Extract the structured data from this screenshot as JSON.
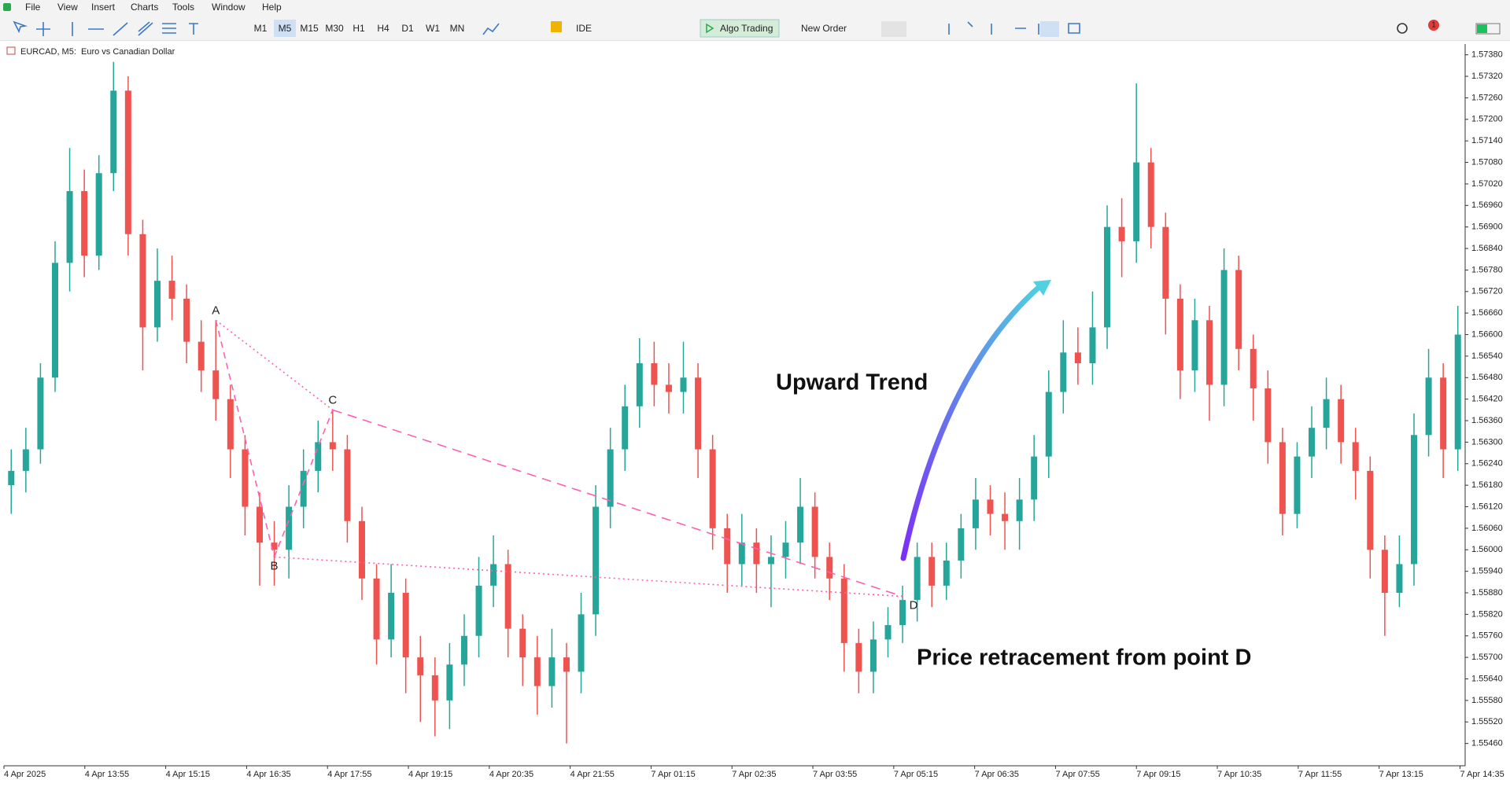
{
  "menu": [
    "File",
    "View",
    "Insert",
    "Charts",
    "Tools",
    "Window",
    "Help"
  ],
  "toolbar": {
    "timeframes": [
      "M1",
      "M5",
      "M15",
      "M30",
      "H1",
      "H4",
      "D1",
      "W1",
      "MN"
    ],
    "active_timeframe": "M5",
    "ide": "IDE",
    "algo_trading": "Algo Trading",
    "new_order": "New Order",
    "notifications": 1
  },
  "chart_data": {
    "type": "candlestick",
    "title": "EURCAD, M5:  Euro vs Canadian Dollar",
    "up_color": "#26a69a",
    "down_color": "#ef5350",
    "x_labels": [
      "4 Apr 2025",
      "4 Apr 13:55",
      "4 Apr 15:15",
      "4 Apr 16:35",
      "4 Apr 17:55",
      "4 Apr 19:15",
      "4 Apr 20:35",
      "4 Apr 21:55",
      "7 Apr 01:15",
      "7 Apr 02:35",
      "7 Apr 03:55",
      "7 Apr 05:15",
      "7 Apr 06:35",
      "7 Apr 07:55",
      "7 Apr 09:15",
      "7 Apr 10:35",
      "7 Apr 11:55",
      "7 Apr 13:15",
      "7 Apr 14:35"
    ],
    "ylim": [
      1.554,
      1.5741
    ],
    "yticks": [
      {
        "value": 1.5738,
        "label": "1.57380"
      },
      {
        "value": 1.5732,
        "label": "1.57320"
      },
      {
        "value": 1.5726,
        "label": "1.57260"
      },
      {
        "value": 1.572,
        "label": "1.57200"
      },
      {
        "value": 1.5714,
        "label": "1.57140"
      },
      {
        "value": 1.5708,
        "label": "1.57080"
      },
      {
        "value": 1.5702,
        "label": "1.57020"
      },
      {
        "value": 1.5696,
        "label": "1.56960"
      },
      {
        "value": 1.569,
        "label": "1.56900"
      },
      {
        "value": 1.5684,
        "label": "1.56840"
      },
      {
        "value": 1.5678,
        "label": "1.56780"
      },
      {
        "value": 1.5672,
        "label": "1.56720"
      },
      {
        "value": 1.5666,
        "label": "1.56660"
      },
      {
        "value": 1.566,
        "label": "1.56600"
      },
      {
        "value": 1.5654,
        "label": "1.56540"
      },
      {
        "value": 1.5648,
        "label": "1.56480"
      },
      {
        "value": 1.5642,
        "label": "1.56420"
      },
      {
        "value": 1.5636,
        "label": "1.56360"
      },
      {
        "value": 1.563,
        "label": "1.56300"
      },
      {
        "value": 1.5624,
        "label": "1.56240"
      },
      {
        "value": 1.5618,
        "label": "1.56180"
      },
      {
        "value": 1.5612,
        "label": "1.56120"
      },
      {
        "value": 1.5606,
        "label": "1.56060"
      },
      {
        "value": 1.56,
        "label": "1.56000"
      },
      {
        "value": 1.5594,
        "label": "1.55940"
      },
      {
        "value": 1.5588,
        "label": "1.55880"
      },
      {
        "value": 1.5582,
        "label": "1.55820"
      },
      {
        "value": 1.5576,
        "label": "1.55760"
      },
      {
        "value": 1.557,
        "label": "1.55700"
      },
      {
        "value": 1.5564,
        "label": "1.55640"
      },
      {
        "value": 1.5558,
        "label": "1.55580"
      },
      {
        "value": 1.5552,
        "label": "1.55520"
      },
      {
        "value": 1.5546,
        "label": "1.55460"
      }
    ],
    "candles": [
      [
        1.5618,
        1.5628,
        1.561,
        1.5622
      ],
      [
        1.5622,
        1.5634,
        1.5616,
        1.5628
      ],
      [
        1.5628,
        1.5652,
        1.5624,
        1.5648
      ],
      [
        1.5648,
        1.5686,
        1.5644,
        1.568
      ],
      [
        1.568,
        1.5712,
        1.5672,
        1.57
      ],
      [
        1.57,
        1.5706,
        1.5676,
        1.5682
      ],
      [
        1.5682,
        1.571,
        1.5678,
        1.5705
      ],
      [
        1.5705,
        1.5736,
        1.57,
        1.5728
      ],
      [
        1.5728,
        1.5732,
        1.5682,
        1.5688
      ],
      [
        1.5688,
        1.5692,
        1.565,
        1.5662
      ],
      [
        1.5662,
        1.5684,
        1.5658,
        1.5675
      ],
      [
        1.5675,
        1.5682,
        1.5664,
        1.567
      ],
      [
        1.567,
        1.5674,
        1.5652,
        1.5658
      ],
      [
        1.5658,
        1.5664,
        1.5644,
        1.565
      ],
      [
        1.565,
        1.5664,
        1.5636,
        1.5642
      ],
      [
        1.5642,
        1.5646,
        1.562,
        1.5628
      ],
      [
        1.5628,
        1.5632,
        1.5604,
        1.5612
      ],
      [
        1.5612,
        1.5616,
        1.559,
        1.5602
      ],
      [
        1.5602,
        1.5608,
        1.559,
        1.56
      ],
      [
        1.56,
        1.5618,
        1.5592,
        1.5612
      ],
      [
        1.5612,
        1.5628,
        1.5606,
        1.5622
      ],
      [
        1.5622,
        1.5636,
        1.5616,
        1.563
      ],
      [
        1.563,
        1.5639,
        1.5622,
        1.5628
      ],
      [
        1.5628,
        1.5632,
        1.5602,
        1.5608
      ],
      [
        1.5608,
        1.5612,
        1.5586,
        1.5592
      ],
      [
        1.5592,
        1.5596,
        1.5568,
        1.5575
      ],
      [
        1.5575,
        1.5596,
        1.557,
        1.5588
      ],
      [
        1.5588,
        1.5592,
        1.556,
        1.557
      ],
      [
        1.557,
        1.5576,
        1.5552,
        1.5565
      ],
      [
        1.5565,
        1.557,
        1.5548,
        1.5558
      ],
      [
        1.5558,
        1.5574,
        1.555,
        1.5568
      ],
      [
        1.5568,
        1.5582,
        1.5562,
        1.5576
      ],
      [
        1.5576,
        1.5598,
        1.557,
        1.559
      ],
      [
        1.559,
        1.5604,
        1.5584,
        1.5596
      ],
      [
        1.5596,
        1.56,
        1.557,
        1.5578
      ],
      [
        1.5578,
        1.5582,
        1.5562,
        1.557
      ],
      [
        1.557,
        1.5576,
        1.5554,
        1.5562
      ],
      [
        1.5562,
        1.5578,
        1.5556,
        1.557
      ],
      [
        1.557,
        1.5574,
        1.5546,
        1.5566
      ],
      [
        1.5566,
        1.5588,
        1.556,
        1.5582
      ],
      [
        1.5582,
        1.5618,
        1.5576,
        1.5612
      ],
      [
        1.5612,
        1.5634,
        1.5606,
        1.5628
      ],
      [
        1.5628,
        1.5646,
        1.5622,
        1.564
      ],
      [
        1.564,
        1.5659,
        1.5634,
        1.5652
      ],
      [
        1.5652,
        1.5658,
        1.564,
        1.5646
      ],
      [
        1.5646,
        1.5652,
        1.5638,
        1.5644
      ],
      [
        1.5644,
        1.5658,
        1.5638,
        1.5648
      ],
      [
        1.5648,
        1.5652,
        1.562,
        1.5628
      ],
      [
        1.5628,
        1.5632,
        1.56,
        1.5606
      ],
      [
        1.5606,
        1.561,
        1.5588,
        1.5596
      ],
      [
        1.5596,
        1.561,
        1.559,
        1.5602
      ],
      [
        1.5602,
        1.5606,
        1.5588,
        1.5596
      ],
      [
        1.5596,
        1.5604,
        1.5584,
        1.5598
      ],
      [
        1.5598,
        1.5608,
        1.5592,
        1.5602
      ],
      [
        1.5602,
        1.562,
        1.5596,
        1.5612
      ],
      [
        1.5612,
        1.5616,
        1.5592,
        1.5598
      ],
      [
        1.5598,
        1.5602,
        1.5586,
        1.5592
      ],
      [
        1.5592,
        1.5596,
        1.5566,
        1.5574
      ],
      [
        1.5574,
        1.5578,
        1.556,
        1.5566
      ],
      [
        1.5566,
        1.558,
        1.556,
        1.5575
      ],
      [
        1.5575,
        1.5584,
        1.557,
        1.5579
      ],
      [
        1.5579,
        1.559,
        1.5574,
        1.5586
      ],
      [
        1.5586,
        1.5602,
        1.558,
        1.5598
      ],
      [
        1.5598,
        1.5602,
        1.5584,
        1.559
      ],
      [
        1.559,
        1.5602,
        1.5586,
        1.5597
      ],
      [
        1.5597,
        1.561,
        1.5592,
        1.5606
      ],
      [
        1.5606,
        1.562,
        1.56,
        1.5614
      ],
      [
        1.5614,
        1.5618,
        1.5604,
        1.561
      ],
      [
        1.561,
        1.5616,
        1.56,
        1.5608
      ],
      [
        1.5608,
        1.562,
        1.56,
        1.5614
      ],
      [
        1.5614,
        1.5632,
        1.5608,
        1.5626
      ],
      [
        1.5626,
        1.565,
        1.562,
        1.5644
      ],
      [
        1.5644,
        1.5664,
        1.5638,
        1.5655
      ],
      [
        1.5655,
        1.5662,
        1.5646,
        1.5652
      ],
      [
        1.5652,
        1.5672,
        1.5646,
        1.5662
      ],
      [
        1.5662,
        1.5696,
        1.5656,
        1.569
      ],
      [
        1.569,
        1.5698,
        1.5676,
        1.5686
      ],
      [
        1.5686,
        1.573,
        1.568,
        1.5708
      ],
      [
        1.5708,
        1.5712,
        1.5684,
        1.569
      ],
      [
        1.569,
        1.5694,
        1.566,
        1.567
      ],
      [
        1.567,
        1.5674,
        1.5642,
        1.565
      ],
      [
        1.565,
        1.567,
        1.5644,
        1.5664
      ],
      [
        1.5664,
        1.5668,
        1.5636,
        1.5646
      ],
      [
        1.5646,
        1.5684,
        1.564,
        1.5678
      ],
      [
        1.5678,
        1.5682,
        1.565,
        1.5656
      ],
      [
        1.5656,
        1.566,
        1.5636,
        1.5645
      ],
      [
        1.5645,
        1.565,
        1.5624,
        1.563
      ],
      [
        1.563,
        1.5634,
        1.5604,
        1.561
      ],
      [
        1.561,
        1.563,
        1.5606,
        1.5626
      ],
      [
        1.5626,
        1.564,
        1.562,
        1.5634
      ],
      [
        1.5634,
        1.5648,
        1.5628,
        1.5642
      ],
      [
        1.5642,
        1.5646,
        1.5624,
        1.563
      ],
      [
        1.563,
        1.5634,
        1.5614,
        1.5622
      ],
      [
        1.5622,
        1.5626,
        1.5592,
        1.56
      ],
      [
        1.56,
        1.5604,
        1.5576,
        1.5588
      ],
      [
        1.5588,
        1.5604,
        1.5584,
        1.5596
      ],
      [
        1.5596,
        1.5638,
        1.559,
        1.5632
      ],
      [
        1.5632,
        1.5656,
        1.5626,
        1.5648
      ],
      [
        1.5648,
        1.5652,
        1.562,
        1.5628
      ],
      [
        1.5628,
        1.5668,
        1.5622,
        1.566
      ]
    ],
    "pattern": {
      "color": "#ff5fb0",
      "label_color": "#ff8a50",
      "points": [
        {
          "label": "A",
          "index": 14,
          "price": 1.5664
        },
        {
          "label": "B",
          "index": 18,
          "price": 1.5598
        },
        {
          "label": "C",
          "index": 22,
          "price": 1.5639
        },
        {
          "label": "D",
          "index": 61,
          "price": 1.5587
        }
      ]
    },
    "annotations": [
      "Upward Trend",
      "Price retracement from point D"
    ]
  }
}
